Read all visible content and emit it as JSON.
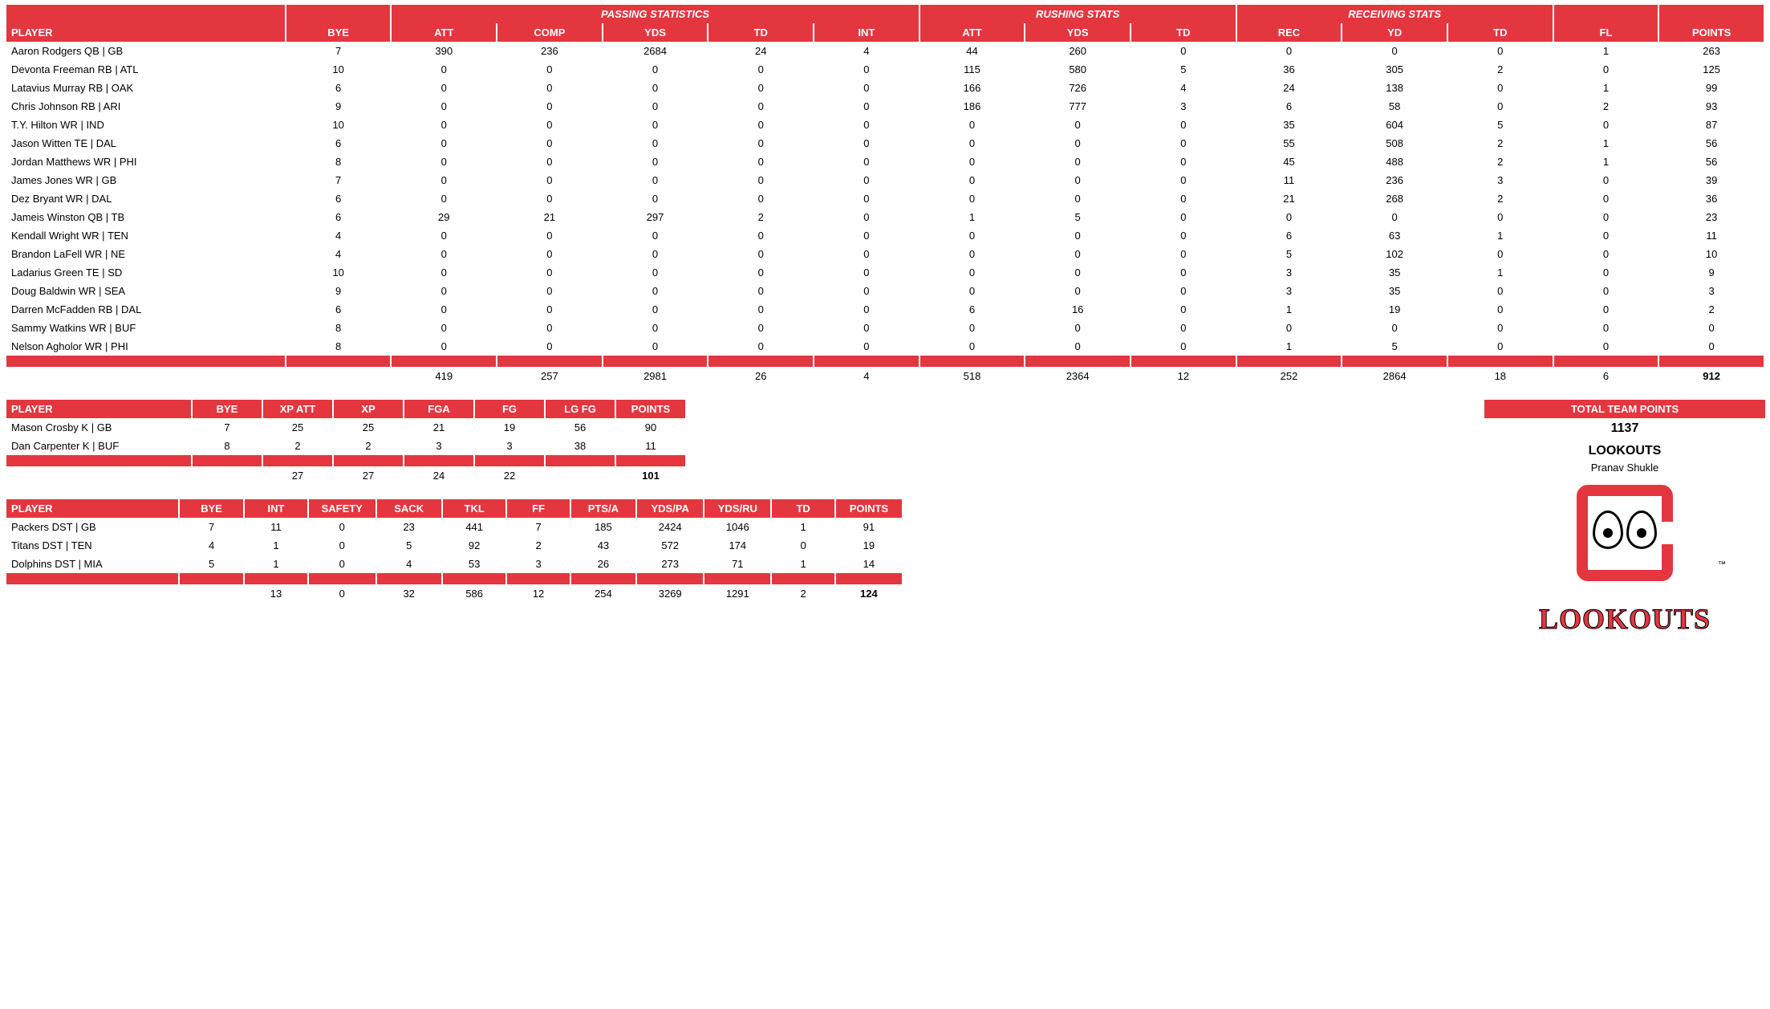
{
  "colors": {
    "accent": "#e4363f",
    "text": "#000000",
    "bg": "#ffffff"
  },
  "offense": {
    "group_headers": {
      "passing": "PASSING STATISTICS",
      "rushing": "RUSHING STATS",
      "receiving": "RECEIVING STATS"
    },
    "columns": [
      "PLAYER",
      "BYE",
      "ATT",
      "COMP",
      "YDS",
      "TD",
      "INT",
      "ATT",
      "YDS",
      "TD",
      "REC",
      "YD",
      "TD",
      "FL",
      "POINTS"
    ],
    "rows": [
      [
        "Aaron Rodgers QB | GB",
        7,
        390,
        236,
        2684,
        24,
        4,
        44,
        260,
        0,
        0,
        0,
        0,
        1,
        263
      ],
      [
        "Devonta Freeman RB | ATL",
        10,
        0,
        0,
        0,
        0,
        0,
        115,
        580,
        5,
        36,
        305,
        2,
        0,
        125
      ],
      [
        "Latavius Murray RB | OAK",
        6,
        0,
        0,
        0,
        0,
        0,
        166,
        726,
        4,
        24,
        138,
        0,
        1,
        99
      ],
      [
        "Chris Johnson RB | ARI",
        9,
        0,
        0,
        0,
        0,
        0,
        186,
        777,
        3,
        6,
        58,
        0,
        2,
        93
      ],
      [
        "T.Y. Hilton WR | IND",
        10,
        0,
        0,
        0,
        0,
        0,
        0,
        0,
        0,
        35,
        604,
        5,
        0,
        87
      ],
      [
        "Jason Witten TE | DAL",
        6,
        0,
        0,
        0,
        0,
        0,
        0,
        0,
        0,
        55,
        508,
        2,
        1,
        56
      ],
      [
        "Jordan Matthews WR | PHI",
        8,
        0,
        0,
        0,
        0,
        0,
        0,
        0,
        0,
        45,
        488,
        2,
        1,
        56
      ],
      [
        "James Jones WR | GB",
        7,
        0,
        0,
        0,
        0,
        0,
        0,
        0,
        0,
        11,
        236,
        3,
        0,
        39
      ],
      [
        "Dez Bryant WR | DAL",
        6,
        0,
        0,
        0,
        0,
        0,
        0,
        0,
        0,
        21,
        268,
        2,
        0,
        36
      ],
      [
        "Jameis Winston QB | TB",
        6,
        29,
        21,
        297,
        2,
        0,
        1,
        5,
        0,
        0,
        0,
        0,
        0,
        23
      ],
      [
        "Kendall Wright WR | TEN",
        4,
        0,
        0,
        0,
        0,
        0,
        0,
        0,
        0,
        6,
        63,
        1,
        0,
        11
      ],
      [
        "Brandon LaFell WR | NE",
        4,
        0,
        0,
        0,
        0,
        0,
        0,
        0,
        0,
        5,
        102,
        0,
        0,
        10
      ],
      [
        "Ladarius Green TE | SD",
        10,
        0,
        0,
        0,
        0,
        0,
        0,
        0,
        0,
        3,
        35,
        1,
        0,
        9
      ],
      [
        "Doug Baldwin WR | SEA",
        9,
        0,
        0,
        0,
        0,
        0,
        0,
        0,
        0,
        3,
        35,
        0,
        0,
        3
      ],
      [
        "Darren McFadden RB | DAL",
        6,
        0,
        0,
        0,
        0,
        0,
        6,
        16,
        0,
        1,
        19,
        0,
        0,
        2
      ],
      [
        "Sammy Watkins WR | BUF",
        8,
        0,
        0,
        0,
        0,
        0,
        0,
        0,
        0,
        0,
        0,
        0,
        0,
        0
      ],
      [
        "Nelson Agholor WR | PHI",
        8,
        0,
        0,
        0,
        0,
        0,
        0,
        0,
        0,
        1,
        5,
        0,
        0,
        0
      ]
    ],
    "totals": [
      "",
      "",
      419,
      257,
      2981,
      26,
      4,
      518,
      2364,
      12,
      252,
      2864,
      18,
      6,
      "912"
    ]
  },
  "kicking": {
    "columns": [
      "PLAYER",
      "BYE",
      "XP ATT",
      "XP",
      "FGA",
      "FG",
      "LG FG",
      "POINTS"
    ],
    "rows": [
      [
        "Mason Crosby K | GB",
        7,
        25,
        25,
        21,
        19,
        56,
        90
      ],
      [
        "Dan Carpenter K | BUF",
        8,
        2,
        2,
        3,
        3,
        38,
        11
      ]
    ],
    "totals": [
      "",
      "",
      27,
      27,
      24,
      22,
      "",
      "101"
    ]
  },
  "dst": {
    "columns": [
      "PLAYER",
      "BYE",
      "INT",
      "SAFETY",
      "SACK",
      "TKL",
      "FF",
      "PTS/A",
      "YDS/PA",
      "YDS/RU",
      "TD",
      "POINTS"
    ],
    "rows": [
      [
        "Packers DST | GB",
        7,
        11,
        0,
        23,
        441,
        7,
        185,
        2424,
        1046,
        1,
        91
      ],
      [
        "Titans DST | TEN",
        4,
        1,
        0,
        5,
        92,
        2,
        43,
        572,
        174,
        0,
        19
      ],
      [
        "Dolphins DST | MIA",
        5,
        1,
        0,
        4,
        53,
        3,
        26,
        273,
        71,
        1,
        14
      ]
    ],
    "totals": [
      "",
      "",
      13,
      0,
      32,
      586,
      12,
      254,
      3269,
      1291,
      2,
      "124"
    ]
  },
  "team": {
    "total_label": "TOTAL TEAM POINTS",
    "total_value": "1137",
    "name": "LOOKOUTS",
    "owner": "Pranav Shukle",
    "logo_text": "LOOKOUTS",
    "tm": "™"
  }
}
